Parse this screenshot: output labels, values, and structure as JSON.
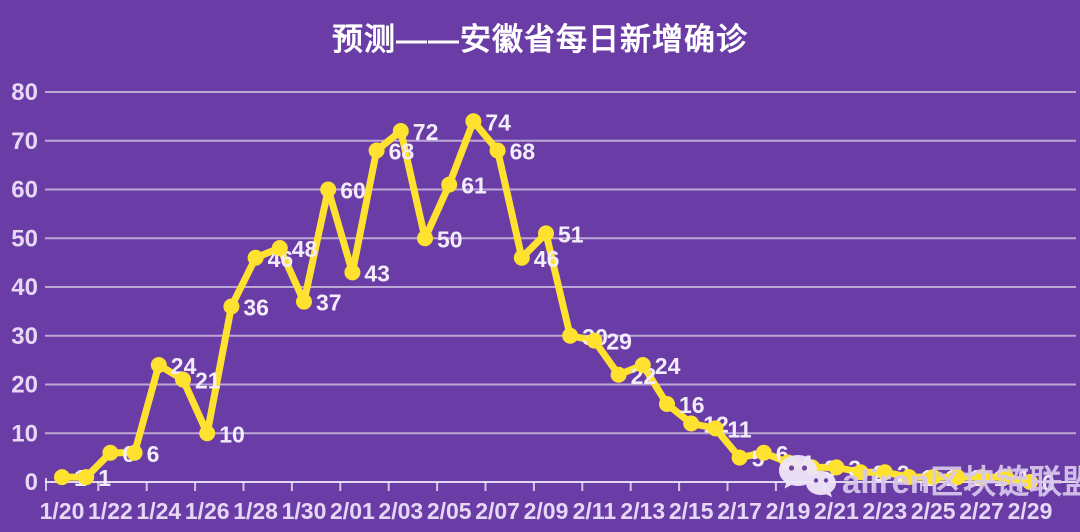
{
  "title": "预测——安徽省每日新增确诊",
  "colors": {
    "background": "#6A3DA6",
    "line": "#FFE230",
    "grid": "#FFFFFF",
    "axis_text": "#E6D8F4",
    "label_text": "#F3ECFA",
    "title_text": "#FFFFFF",
    "watermark_text": "#D8C8EE",
    "watermark_icon": "#EFE6F9"
  },
  "watermark": {
    "icon": "wechat-icon",
    "text": "aliren区块链联盟"
  },
  "chart_data": {
    "type": "line",
    "title": "预测——安徽省每日新增确诊",
    "x": [
      "1/20",
      "1/21",
      "1/22",
      "1/23",
      "1/24",
      "1/25",
      "1/26",
      "1/27",
      "1/28",
      "1/29",
      "1/30",
      "1/31",
      "2/01",
      "2/02",
      "2/03",
      "2/04",
      "2/05",
      "2/06",
      "2/07",
      "2/08",
      "2/09",
      "2/10",
      "2/11",
      "2/12",
      "2/13",
      "2/14",
      "2/15",
      "2/16",
      "2/17",
      "2/18",
      "2/19",
      "2/20",
      "2/21",
      "2/22",
      "2/23",
      "2/24",
      "2/25",
      "2/26",
      "2/27",
      "2/28",
      "2/29"
    ],
    "values": [
      1,
      1,
      6,
      6,
      24,
      21,
      10,
      36,
      46,
      48,
      37,
      60,
      43,
      68,
      72,
      50,
      61,
      74,
      68,
      46,
      51,
      30,
      29,
      22,
      24,
      16,
      12,
      11,
      5,
      6,
      4,
      3,
      3,
      2,
      2,
      1,
      1,
      1,
      1,
      1,
      0
    ],
    "x_tick_labels": [
      "1/20",
      "1/22",
      "1/24",
      "1/26",
      "1/28",
      "1/30",
      "2/01",
      "2/03",
      "2/05",
      "2/07",
      "2/09",
      "2/11",
      "2/13",
      "2/15",
      "2/17",
      "2/19",
      "2/21",
      "2/23",
      "2/25",
      "2/27",
      "2/29"
    ],
    "y_ticks": [
      0,
      10,
      20,
      30,
      40,
      50,
      60,
      70,
      80
    ],
    "ylim": [
      0,
      80
    ],
    "grid": true,
    "legend": false,
    "data_labels": true
  }
}
